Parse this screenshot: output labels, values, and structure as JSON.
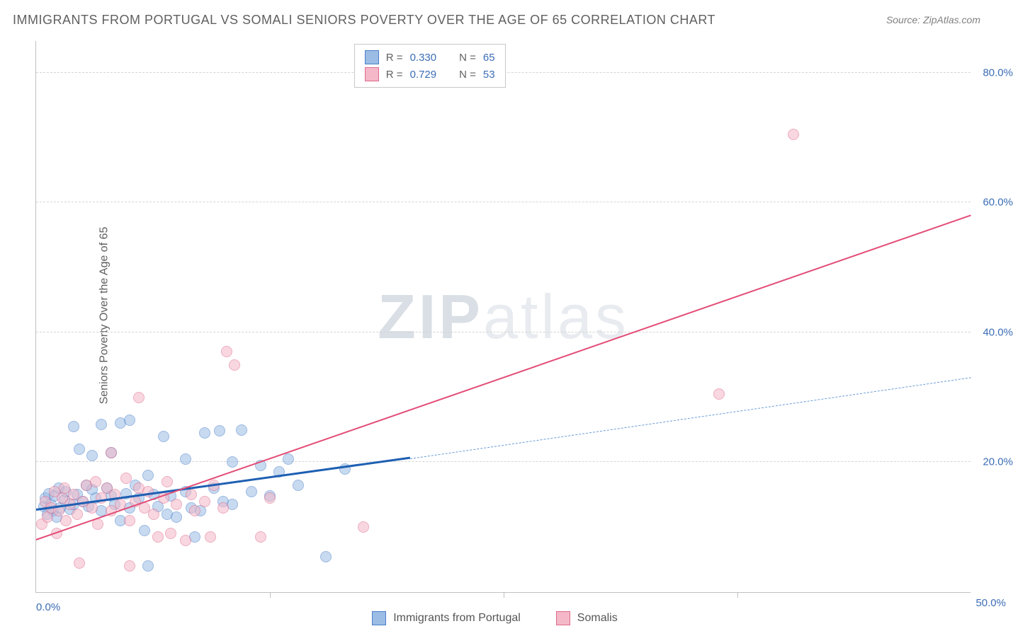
{
  "title": "IMMIGRANTS FROM PORTUGAL VS SOMALI SENIORS POVERTY OVER THE AGE OF 65 CORRELATION CHART",
  "source_label": "Source:",
  "source_name": "ZipAtlas.com",
  "y_axis_label": "Seniors Poverty Over the Age of 65",
  "watermark": {
    "part1": "ZIP",
    "part2": "atlas"
  },
  "chart": {
    "type": "scatter",
    "xlim": [
      0,
      50
    ],
    "ylim": [
      0,
      85
    ],
    "x_ticks": [
      0,
      50
    ],
    "x_tick_labels": [
      "0.0%",
      "50.0%"
    ],
    "x_minor_ticks": [
      12.5,
      25,
      37.5
    ],
    "y_ticks": [
      20,
      40,
      60,
      80
    ],
    "y_tick_labels": [
      "20.0%",
      "40.0%",
      "60.0%",
      "80.0%"
    ],
    "grid_color": "#d5d5d5",
    "background_color": "#ffffff",
    "point_radius": 8,
    "point_opacity": 0.55,
    "series": [
      {
        "name": "Immigrants from Portugal",
        "fill": "#9bbce4",
        "stroke": "#4a7fc9",
        "r_value": "0.330",
        "n_value": "65",
        "trend": {
          "solid_x1": 0,
          "solid_y1": 12.5,
          "solid_x2": 20,
          "solid_y2": 20.5,
          "dash_x1": 20,
          "dash_y1": 20.5,
          "dash_x2": 50,
          "dash_y2": 33.0,
          "solid_color": "#1e5fb3",
          "solid_width": 3,
          "dash_color": "#6a9bd8",
          "dash_width": 1.5
        },
        "points": [
          [
            0.4,
            13.2
          ],
          [
            0.5,
            14.5
          ],
          [
            0.6,
            12.0
          ],
          [
            0.7,
            15.2
          ],
          [
            0.8,
            13.5
          ],
          [
            0.9,
            12.5
          ],
          [
            1.0,
            14.8
          ],
          [
            1.1,
            11.5
          ],
          [
            1.2,
            16.0
          ],
          [
            1.3,
            13.0
          ],
          [
            1.5,
            14.2
          ],
          [
            1.6,
            15.5
          ],
          [
            1.8,
            12.8
          ],
          [
            2.0,
            13.5
          ],
          [
            2.0,
            25.5
          ],
          [
            2.2,
            15.0
          ],
          [
            2.3,
            22.0
          ],
          [
            2.5,
            14.0
          ],
          [
            2.7,
            16.5
          ],
          [
            2.8,
            13.2
          ],
          [
            3.0,
            15.8
          ],
          [
            3.0,
            21.0
          ],
          [
            3.2,
            14.5
          ],
          [
            3.5,
            12.5
          ],
          [
            3.5,
            25.8
          ],
          [
            3.8,
            16.0
          ],
          [
            4.0,
            14.8
          ],
          [
            4.0,
            21.5
          ],
          [
            4.2,
            13.5
          ],
          [
            4.5,
            11.0
          ],
          [
            4.5,
            26.0
          ],
          [
            4.8,
            15.2
          ],
          [
            5.0,
            13.0
          ],
          [
            5.0,
            26.5
          ],
          [
            5.3,
            16.5
          ],
          [
            5.5,
            14.5
          ],
          [
            5.8,
            9.5
          ],
          [
            6.0,
            4.0
          ],
          [
            6.0,
            18.0
          ],
          [
            6.3,
            15.0
          ],
          [
            6.5,
            13.2
          ],
          [
            6.8,
            24.0
          ],
          [
            7.0,
            12.0
          ],
          [
            7.2,
            14.8
          ],
          [
            7.5,
            11.5
          ],
          [
            8.0,
            20.5
          ],
          [
            8.0,
            15.5
          ],
          [
            8.3,
            13.0
          ],
          [
            8.5,
            8.5
          ],
          [
            8.8,
            12.5
          ],
          [
            9.0,
            24.5
          ],
          [
            9.5,
            16.0
          ],
          [
            9.8,
            24.8
          ],
          [
            10.0,
            14.0
          ],
          [
            10.5,
            13.5
          ],
          [
            10.5,
            20.0
          ],
          [
            11.0,
            25.0
          ],
          [
            11.5,
            15.5
          ],
          [
            12.0,
            19.5
          ],
          [
            12.5,
            14.8
          ],
          [
            13.0,
            18.5
          ],
          [
            13.5,
            20.5
          ],
          [
            14.0,
            16.5
          ],
          [
            15.5,
            5.5
          ],
          [
            16.5,
            19.0
          ]
        ]
      },
      {
        "name": "Somalis",
        "fill": "#f4b8c8",
        "stroke": "#e06a8c",
        "r_value": "0.729",
        "n_value": "53",
        "trend": {
          "solid_x1": 0,
          "solid_y1": 8.0,
          "solid_x2": 50,
          "solid_y2": 58.0,
          "solid_color": "#e34d77",
          "solid_width": 2.5
        },
        "points": [
          [
            0.3,
            10.5
          ],
          [
            0.5,
            14.0
          ],
          [
            0.6,
            11.5
          ],
          [
            0.8,
            13.0
          ],
          [
            1.0,
            15.5
          ],
          [
            1.1,
            9.0
          ],
          [
            1.2,
            12.5
          ],
          [
            1.4,
            14.5
          ],
          [
            1.5,
            16.0
          ],
          [
            1.6,
            11.0
          ],
          [
            1.8,
            13.5
          ],
          [
            2.0,
            15.0
          ],
          [
            2.2,
            12.0
          ],
          [
            2.3,
            4.5
          ],
          [
            2.5,
            14.0
          ],
          [
            2.7,
            16.5
          ],
          [
            3.0,
            13.0
          ],
          [
            3.2,
            17.0
          ],
          [
            3.3,
            10.5
          ],
          [
            3.5,
            14.5
          ],
          [
            3.8,
            16.0
          ],
          [
            4.0,
            12.5
          ],
          [
            4.0,
            21.5
          ],
          [
            4.2,
            15.0
          ],
          [
            4.5,
            13.5
          ],
          [
            4.8,
            17.5
          ],
          [
            5.0,
            11.0
          ],
          [
            5.0,
            4.0
          ],
          [
            5.3,
            14.0
          ],
          [
            5.5,
            16.0
          ],
          [
            5.5,
            30.0
          ],
          [
            5.8,
            13.0
          ],
          [
            6.0,
            15.5
          ],
          [
            6.3,
            12.0
          ],
          [
            6.5,
            8.5
          ],
          [
            6.8,
            14.5
          ],
          [
            7.0,
            17.0
          ],
          [
            7.2,
            9.0
          ],
          [
            7.5,
            13.5
          ],
          [
            8.0,
            8.0
          ],
          [
            8.3,
            15.0
          ],
          [
            8.5,
            12.5
          ],
          [
            9.0,
            14.0
          ],
          [
            9.3,
            8.5
          ],
          [
            9.5,
            16.5
          ],
          [
            10.0,
            13.0
          ],
          [
            10.2,
            37.0
          ],
          [
            10.6,
            35.0
          ],
          [
            12.0,
            8.5
          ],
          [
            12.5,
            14.5
          ],
          [
            17.5,
            10.0
          ],
          [
            36.5,
            30.5
          ],
          [
            40.5,
            70.5
          ]
        ]
      }
    ]
  },
  "stats_legend": {
    "R_label": "R =",
    "N_label": "N ="
  },
  "bottom_legend": [
    {
      "label": "Immigrants from Portugal",
      "fill": "#9bbce4",
      "stroke": "#4a7fc9"
    },
    {
      "label": "Somalis",
      "fill": "#f4b8c8",
      "stroke": "#e06a8c"
    }
  ]
}
